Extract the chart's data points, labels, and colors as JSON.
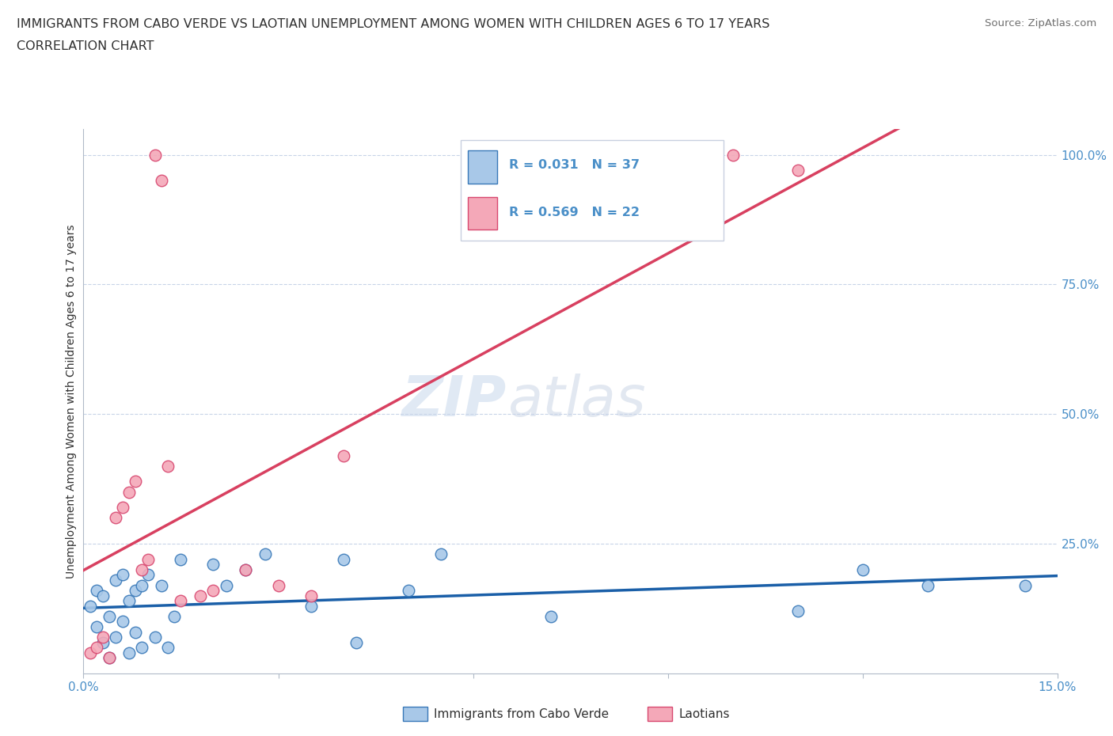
{
  "title": "IMMIGRANTS FROM CABO VERDE VS LAOTIAN UNEMPLOYMENT AMONG WOMEN WITH CHILDREN AGES 6 TO 17 YEARS",
  "subtitle": "CORRELATION CHART",
  "source": "Source: ZipAtlas.com",
  "ylabel": "Unemployment Among Women with Children Ages 6 to 17 years",
  "legend_label_1": "Immigrants from Cabo Verde",
  "legend_label_2": "Laotians",
  "r1": 0.031,
  "n1": 37,
  "r2": 0.569,
  "n2": 22,
  "color1": "#a8c8e8",
  "color2": "#f4a8b8",
  "edge_color1": "#3878b8",
  "edge_color2": "#d84870",
  "line_color1": "#1a5fa8",
  "line_color2": "#d84060",
  "xmin": 0.0,
  "xmax": 0.15,
  "ymin": 0.0,
  "ymax": 1.05,
  "yticks_right": [
    0.0,
    0.25,
    0.5,
    0.75,
    1.0
  ],
  "ytick_labels_right": [
    "",
    "25.0%",
    "50.0%",
    "75.0%",
    "100.0%"
  ],
  "cabo_verde_x": [
    0.001,
    0.002,
    0.002,
    0.003,
    0.003,
    0.004,
    0.004,
    0.005,
    0.005,
    0.006,
    0.006,
    0.007,
    0.007,
    0.008,
    0.008,
    0.009,
    0.009,
    0.01,
    0.011,
    0.012,
    0.013,
    0.014,
    0.015,
    0.02,
    0.022,
    0.025,
    0.028,
    0.035,
    0.04,
    0.042,
    0.05,
    0.055,
    0.072,
    0.11,
    0.12,
    0.13,
    0.145
  ],
  "cabo_verde_y": [
    0.13,
    0.09,
    0.16,
    0.06,
    0.15,
    0.03,
    0.11,
    0.07,
    0.18,
    0.1,
    0.19,
    0.14,
    0.04,
    0.16,
    0.08,
    0.17,
    0.05,
    0.19,
    0.07,
    0.17,
    0.05,
    0.11,
    0.22,
    0.21,
    0.17,
    0.2,
    0.23,
    0.13,
    0.22,
    0.06,
    0.16,
    0.23,
    0.11,
    0.12,
    0.2,
    0.17,
    0.17
  ],
  "laotian_x": [
    0.001,
    0.002,
    0.003,
    0.004,
    0.005,
    0.006,
    0.007,
    0.008,
    0.009,
    0.01,
    0.011,
    0.012,
    0.013,
    0.015,
    0.018,
    0.02,
    0.025,
    0.03,
    0.035,
    0.04,
    0.1,
    0.11
  ],
  "laotian_y": [
    0.04,
    0.05,
    0.07,
    0.03,
    0.3,
    0.32,
    0.35,
    0.37,
    0.2,
    0.22,
    1.0,
    0.95,
    0.4,
    0.14,
    0.15,
    0.16,
    0.2,
    0.17,
    0.15,
    0.42,
    1.0,
    0.97
  ],
  "watermark_zip": "ZIP",
  "watermark_atlas": "atlas",
  "background_color": "#ffffff",
  "grid_color": "#c8d4e8",
  "title_color": "#303030",
  "source_color": "#707070",
  "axis_label_color": "#303030",
  "tick_label_color": "#4a8fc8",
  "legend_border_color": "#c8d0e0"
}
